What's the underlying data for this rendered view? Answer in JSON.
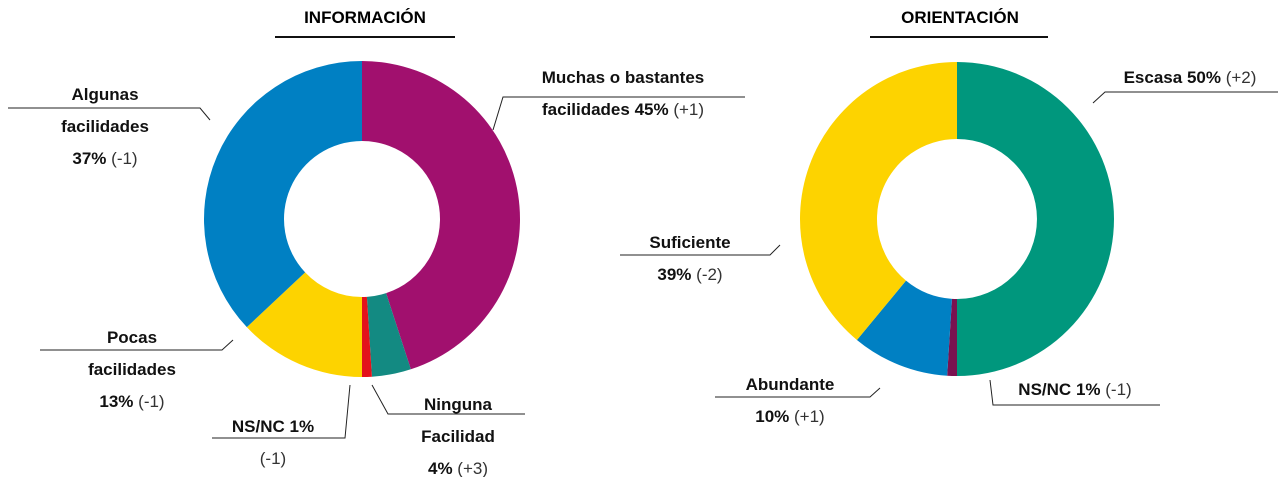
{
  "chart_data": [
    {
      "type": "pie",
      "title": "INFORMACIÓN",
      "categories": [
        "Muchas o bastantes facilidades",
        "Ninguna Facilidad",
        "NS/NC",
        "Pocas facilidades",
        "Algunas facilidades"
      ],
      "values": [
        45,
        4,
        1,
        13,
        37
      ],
      "value_labels": [
        "45%",
        "4%",
        "1%",
        "13%",
        "37%"
      ],
      "changes": [
        "(+1)",
        "(+3)",
        "(-1)",
        "(-1)",
        "(-1)"
      ],
      "colors": [
        "#a1106e",
        "#138a82",
        "#e3111b",
        "#fdd300",
        "#0080c3"
      ]
    },
    {
      "type": "pie",
      "title": "ORIENTACIÓN",
      "categories": [
        "Escasa",
        "NS/NC",
        "Abundante",
        "Suficiente"
      ],
      "values": [
        50,
        1,
        10,
        39
      ],
      "value_labels": [
        "50%",
        "1%",
        "10%",
        "39%"
      ],
      "changes": [
        "(+2)",
        "(-1)",
        "(+1)",
        "(-2)"
      ],
      "colors": [
        "#00977d",
        "#7a1250",
        "#0080c3",
        "#fdd300"
      ]
    }
  ]
}
